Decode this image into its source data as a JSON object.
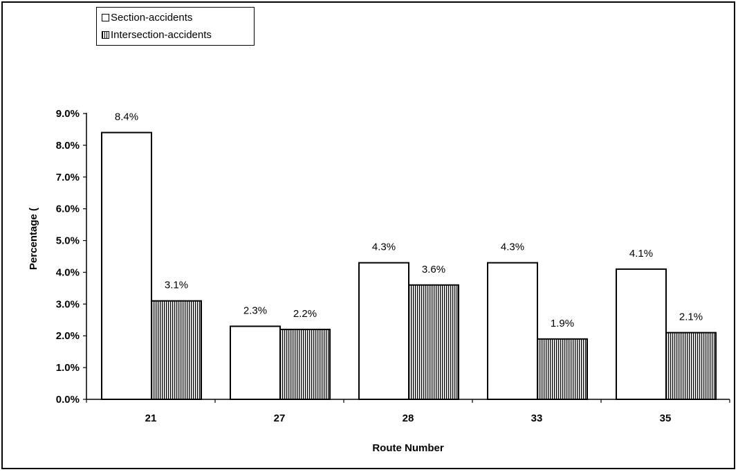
{
  "chart_data": {
    "type": "bar",
    "categories": [
      "21",
      "27",
      "28",
      "33",
      "35"
    ],
    "series": [
      {
        "name": "Section-accidents",
        "values": [
          8.4,
          2.3,
          4.3,
          4.3,
          4.1
        ],
        "labels": [
          "8.4%",
          "2.3%",
          "4.3%",
          "4.3%",
          "4.1%"
        ],
        "fill": "#ffffff",
        "pattern": "none"
      },
      {
        "name": "Intersection-accidents",
        "values": [
          3.1,
          2.2,
          3.6,
          1.9,
          2.1
        ],
        "labels": [
          "3.1%",
          "2.2%",
          "3.6%",
          "1.9%",
          "2.1%"
        ],
        "fill": "#ffffff",
        "pattern": "vertical-stripes"
      }
    ],
    "xlabel": "Route Number",
    "ylabel": "Percentage (",
    "ylim": [
      0,
      9
    ],
    "yticks": [
      "0.0%",
      "1.0%",
      "2.0%",
      "3.0%",
      "4.0%",
      "5.0%",
      "6.0%",
      "7.0%",
      "8.0%",
      "9.0%"
    ],
    "grid": false,
    "legend": "top-left",
    "colors": {
      "bar_stroke": "#000000",
      "stripe": "#000000",
      "background": "#ffffff"
    }
  }
}
